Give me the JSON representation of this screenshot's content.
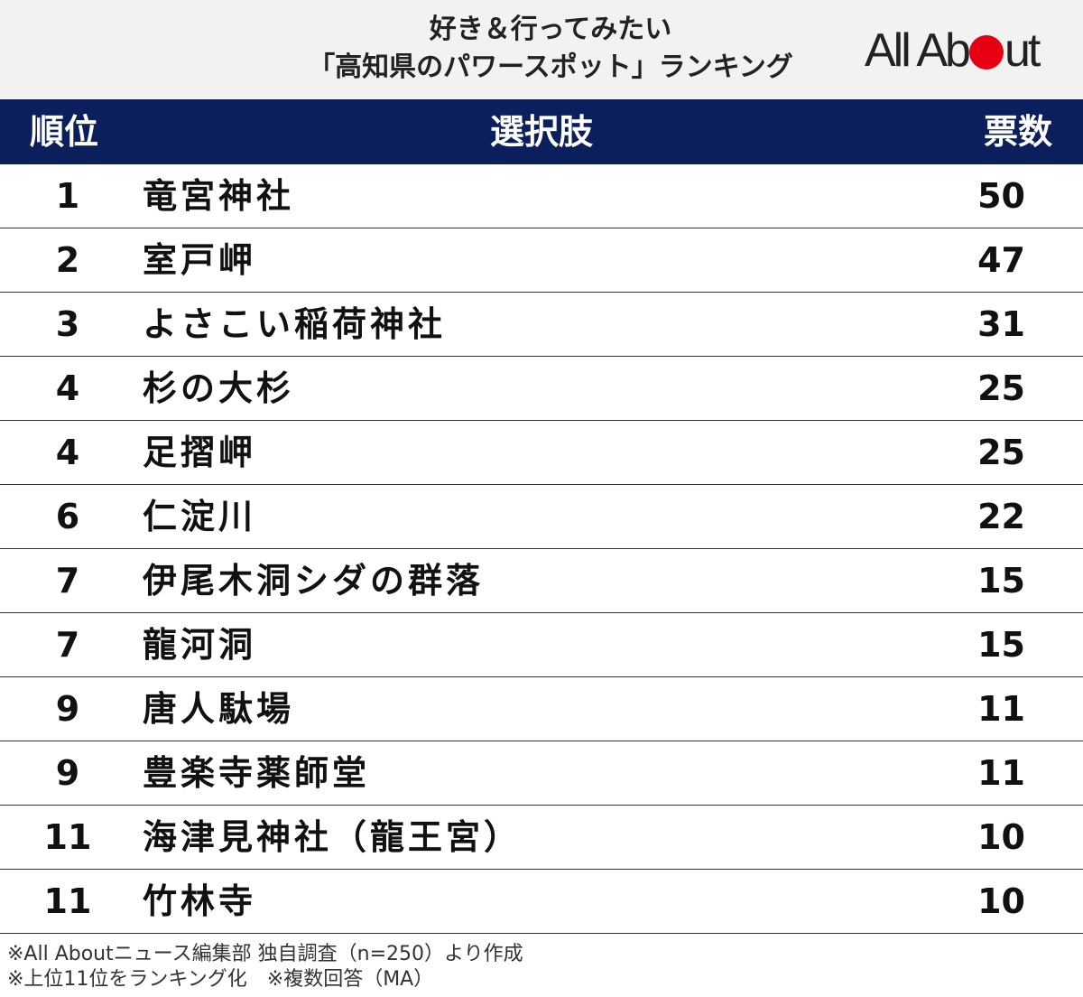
{
  "header": {
    "title_line1": "好き＆行ってみたい",
    "title_line2": "「高知県のパワースポット」ランキング",
    "logo": {
      "text_left": "All Ab",
      "text_right": "ut",
      "dot_color": "#e60012"
    }
  },
  "table": {
    "header_color": "#0b1f5c",
    "columns": [
      "順位",
      "選択肢",
      "票数"
    ],
    "rows": [
      {
        "rank": "1",
        "name": "竜宮神社",
        "votes": "50"
      },
      {
        "rank": "2",
        "name": "室戸岬",
        "votes": "47"
      },
      {
        "rank": "3",
        "name": "よさこい稲荷神社",
        "votes": "31"
      },
      {
        "rank": "4",
        "name": "杉の大杉",
        "votes": "25"
      },
      {
        "rank": "4",
        "name": "足摺岬",
        "votes": "25"
      },
      {
        "rank": "6",
        "name": "仁淀川",
        "votes": "22"
      },
      {
        "rank": "7",
        "name": "伊尾木洞シダの群落",
        "votes": "15"
      },
      {
        "rank": "7",
        "name": "龍河洞",
        "votes": "15"
      },
      {
        "rank": "9",
        "name": "唐人駄場",
        "votes": "11"
      },
      {
        "rank": "9",
        "name": "豊楽寺薬師堂",
        "votes": "11"
      },
      {
        "rank": "11",
        "name": "海津見神社（龍王宮）",
        "votes": "10"
      },
      {
        "rank": "11",
        "name": "竹林寺",
        "votes": "10"
      }
    ]
  },
  "notes": [
    "※All Aboutニュース編集部 独自調査（n=250）より作成",
    "※上位11位をランキング化　※複数回答（MA）"
  ]
}
